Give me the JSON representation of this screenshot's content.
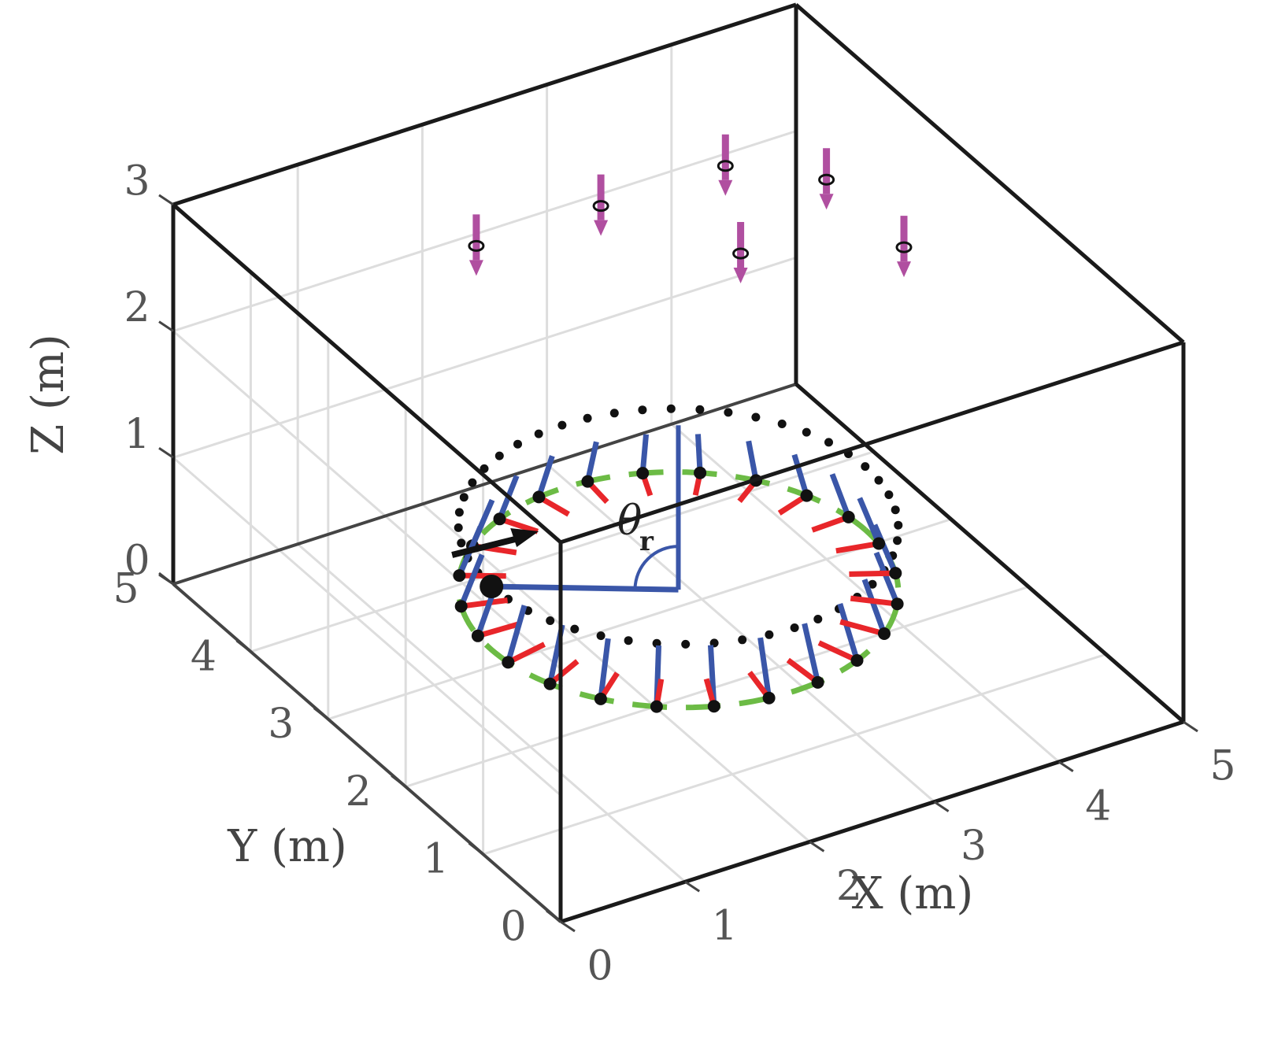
{
  "chart_data": {
    "type": "scatter",
    "projection": "3d",
    "xlabel": "X (m)",
    "ylabel": "Y (m)",
    "zlabel": "Z (m)",
    "xlim": [
      0,
      5
    ],
    "ylim": [
      0,
      5
    ],
    "zlim": [
      0,
      3
    ],
    "x_ticks": [
      "0",
      "1",
      "2",
      "3",
      "4",
      "5"
    ],
    "y_ticks": [
      "0",
      "1",
      "2",
      "3",
      "4",
      "5"
    ],
    "z_ticks": [
      "0",
      "1",
      "2",
      "3"
    ],
    "grid": true,
    "box": true,
    "annotation": {
      "symbol": "θ",
      "subscript": "r"
    },
    "colors": {
      "frame": "#1a1a1a",
      "grid": "#dddddd",
      "reference_circle": "#6cbb45",
      "orbit_points": "#111111",
      "blue_axis": "#3a56a8",
      "red_axis": "#e8262a",
      "anchors": "#b04fa0"
    },
    "anchors": [
      {
        "x": 1.5,
        "y": 3.5,
        "z": 3.0
      },
      {
        "x": 2.5,
        "y": 3.5,
        "z": 3.0
      },
      {
        "x": 3.5,
        "y": 3.5,
        "z": 3.0
      },
      {
        "x": 3.0,
        "y": 2.5,
        "z": 3.0
      },
      {
        "x": 4.0,
        "y": 3.0,
        "z": 3.0
      },
      {
        "x": 4.0,
        "y": 2.0,
        "z": 3.0
      }
    ],
    "reference_circle": {
      "center": [
        2.5,
        2.5
      ],
      "radius": 1.5,
      "z": 0.5
    },
    "orbit": {
      "center": [
        2.5,
        2.5
      ],
      "radius": 1.5,
      "z": 1.0,
      "points": 48
    },
    "attitude_samples": 24,
    "tilt_angle_deg": 20,
    "highlighted_vehicle": {
      "x": 1.0,
      "y": 2.5,
      "z": 1.0
    }
  }
}
